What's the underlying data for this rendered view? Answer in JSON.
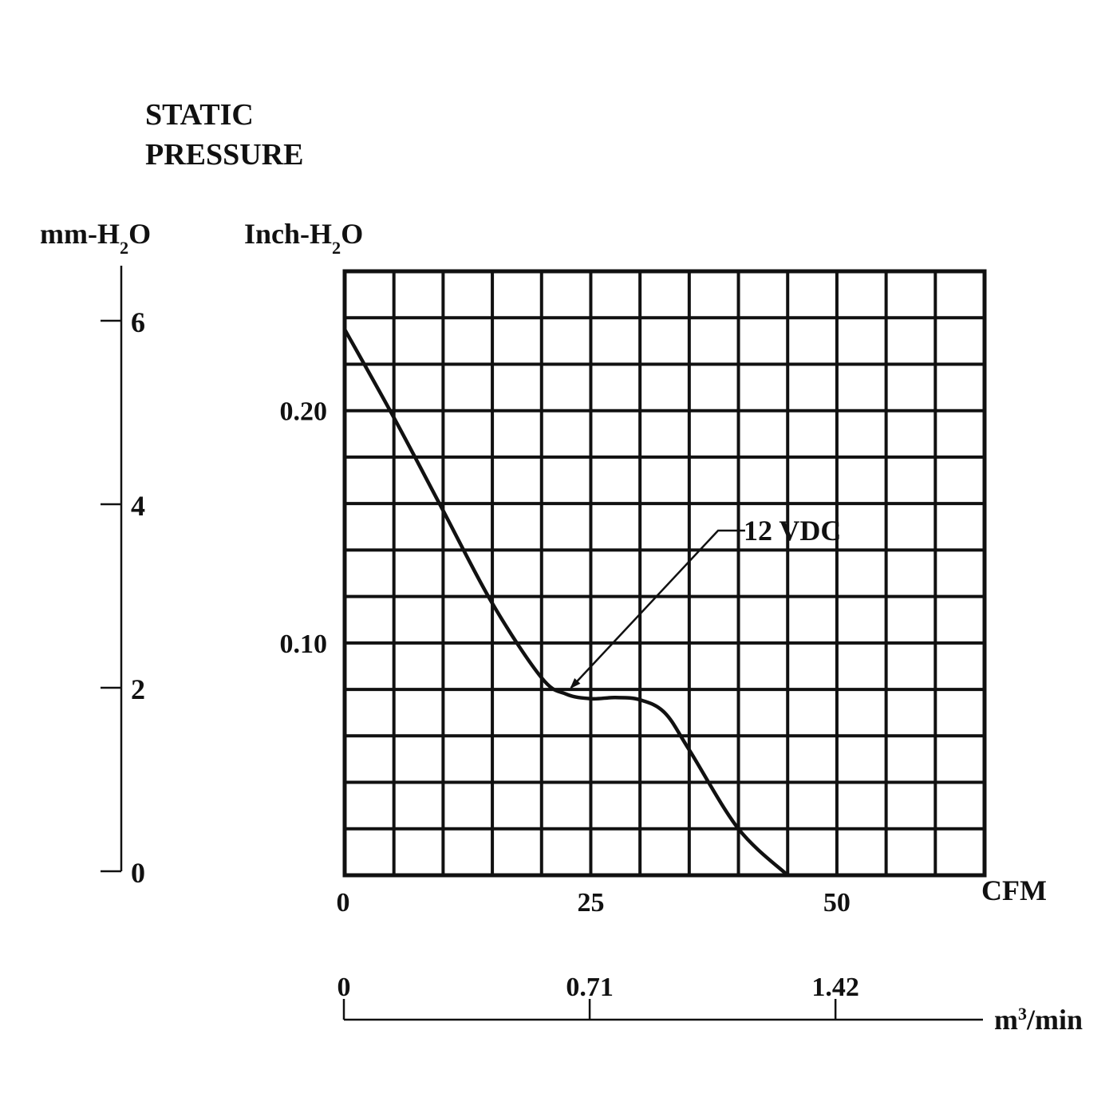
{
  "chart_data": {
    "type": "line",
    "title_lines": [
      "STATIC",
      "PRESSURE"
    ],
    "y_axes": {
      "primary": {
        "label_base": "Inch-H",
        "label_sub": "2",
        "label_end": "O",
        "ticks": [
          {
            "value": 0.1,
            "label": "0.10"
          },
          {
            "value": 0.2,
            "label": "0.20"
          }
        ],
        "range": [
          0,
          0.26
        ]
      },
      "secondary": {
        "label_base": "mm-H",
        "label_sub": "2",
        "label_end": "O",
        "ticks": [
          {
            "value": 0,
            "label": "0"
          },
          {
            "value": 2,
            "label": "2"
          },
          {
            "value": 4,
            "label": "4"
          },
          {
            "value": 6,
            "label": "6"
          }
        ],
        "range": [
          0,
          6.6
        ]
      }
    },
    "x_axes": {
      "primary": {
        "label": "CFM",
        "ticks": [
          {
            "value": 0,
            "label": "0"
          },
          {
            "value": 25,
            "label": "25"
          },
          {
            "value": 50,
            "label": "50"
          }
        ],
        "range": [
          0,
          65
        ]
      },
      "secondary": {
        "label_base": "m",
        "label_sup": "3",
        "label_end": "/min",
        "ticks": [
          {
            "value": 0,
            "label": "0"
          },
          {
            "value": 0.71,
            "label": "0.71"
          },
          {
            "value": 1.42,
            "label": "1.42"
          }
        ],
        "range": [
          0,
          1.846
        ]
      }
    },
    "grid": {
      "x_step": 5,
      "y_step": 0.02
    },
    "series": [
      {
        "name": "12 VDC",
        "x": [
          0,
          5,
          10,
          15,
          20,
          22.5,
          25,
          27.5,
          30,
          32.5,
          35,
          40,
          45
        ],
        "y": [
          0.235,
          0.197,
          0.157,
          0.117,
          0.085,
          0.078,
          0.076,
          0.0765,
          0.0755,
          0.07,
          0.054,
          0.02,
          0.0
        ]
      }
    ],
    "annotation": {
      "text": "12 VDC",
      "points_to": {
        "x": 22.5,
        "y": 0.08
      }
    }
  }
}
